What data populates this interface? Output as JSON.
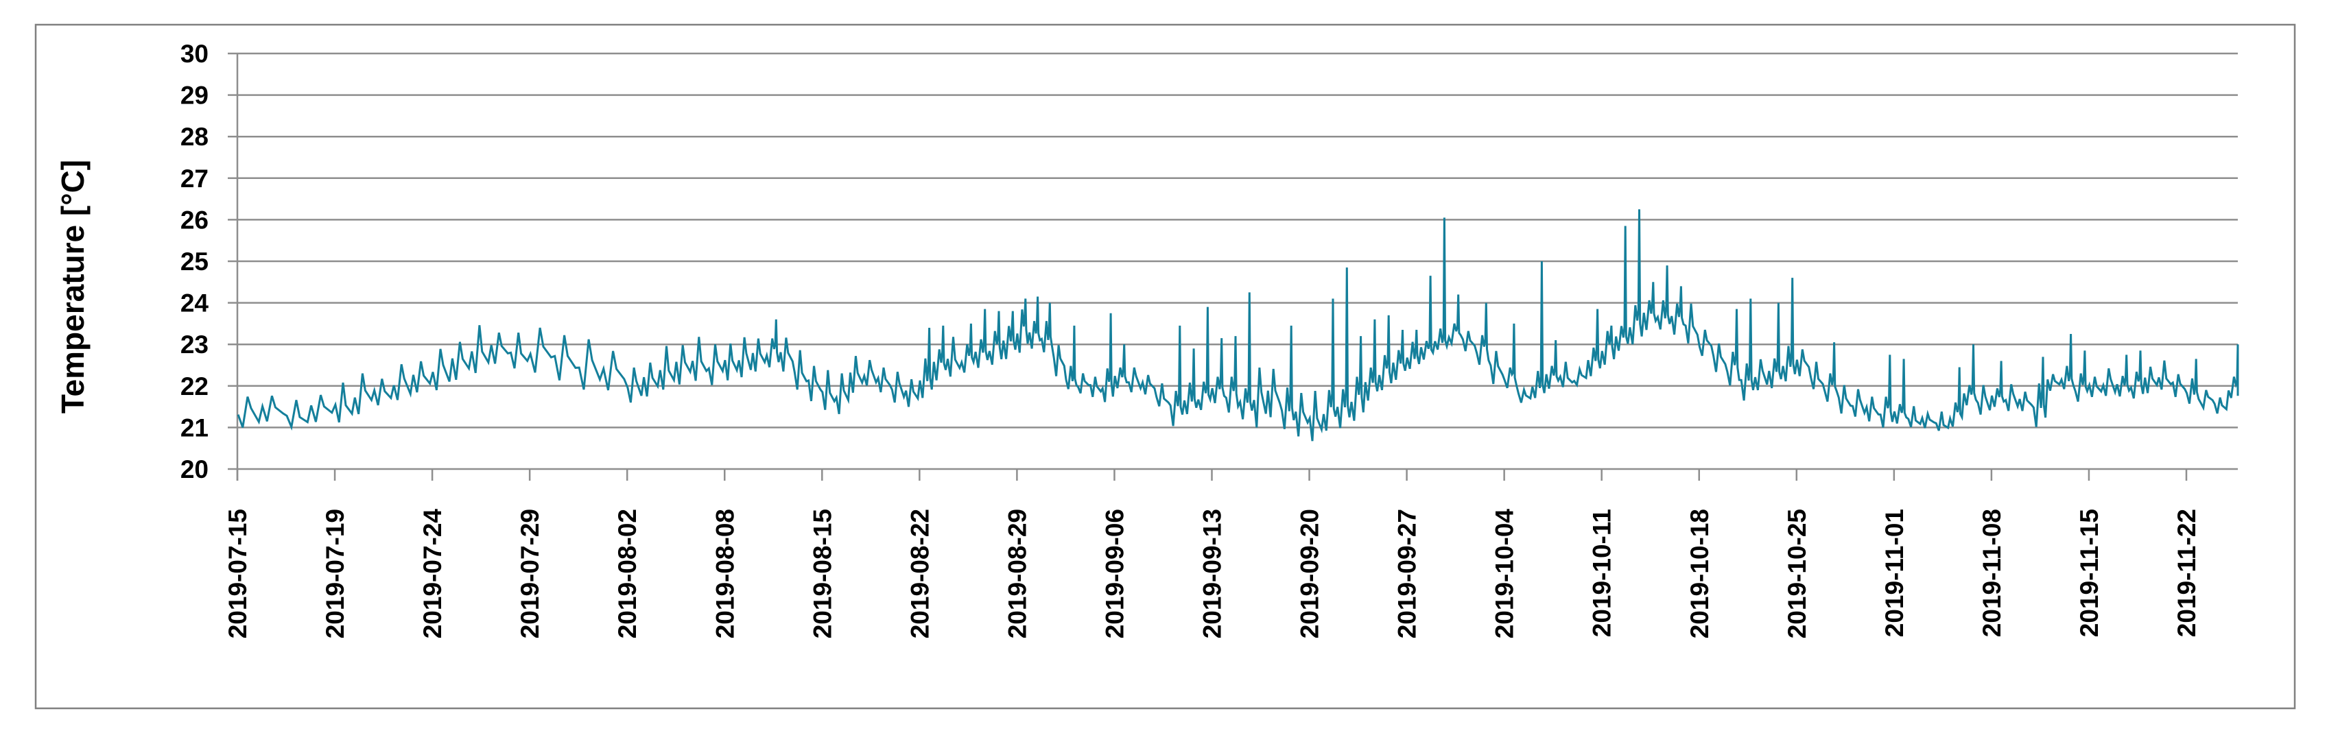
{
  "chart_data": {
    "type": "line",
    "title": "",
    "xlabel": "",
    "ylabel": "Temperature [°C]",
    "ylim": [
      20,
      30
    ],
    "y_ticks": [
      20,
      21,
      22,
      23,
      24,
      25,
      26,
      27,
      28,
      29,
      30
    ],
    "grid": "horizontal-gray-lines",
    "legend_position": "none",
    "line_color": "#147f9b",
    "grid_color": "#8e8e8e",
    "frame_color": "#808080",
    "text_color": "#000000",
    "x_tick_labels": [
      "2019-07-15",
      "2019-07-19",
      "2019-07-24",
      "2019-07-29",
      "2019-08-02",
      "2019-08-08",
      "2019-08-15",
      "2019-08-22",
      "2019-08-29",
      "2019-09-06",
      "2019-09-13",
      "2019-09-20",
      "2019-09-27",
      "2019-10-04",
      "2019-10-11",
      "2019-10-18",
      "2019-10-25",
      "2019-11-01",
      "2019-11-08",
      "2019-11-15",
      "2019-11-22"
    ],
    "daily": [
      {
        "d": "07-15",
        "lo": 21.0,
        "hi": 21.7
      },
      {
        "d": "07-16",
        "lo": 21.1,
        "hi": 21.8
      },
      {
        "d": "07-17",
        "lo": 21.0,
        "hi": 21.6
      },
      {
        "d": "07-18",
        "lo": 21.1,
        "hi": 21.8
      },
      {
        "d": "07-19",
        "lo": 21.1,
        "hi": 22.0
      },
      {
        "d": "07-20",
        "lo": 21.3,
        "hi": 22.3
      },
      {
        "d": "07-21",
        "lo": 21.5,
        "hi": 22.25
      },
      {
        "d": "07-22",
        "lo": 21.65,
        "hi": 22.5
      },
      {
        "d": "07-23",
        "lo": 21.8,
        "hi": 22.65
      },
      {
        "d": "07-24",
        "lo": 21.9,
        "hi": 22.85
      },
      {
        "d": "07-25",
        "lo": 22.1,
        "hi": 23.1
      },
      {
        "d": "07-26",
        "lo": 22.3,
        "hi": 23.4
      },
      {
        "d": "07-27",
        "lo": 22.5,
        "hi": 23.3
      },
      {
        "d": "07-28",
        "lo": 22.4,
        "hi": 23.2
      },
      {
        "d": "07-29",
        "lo": 22.3,
        "hi": 23.4
      },
      {
        "d": "07-30",
        "lo": 22.1,
        "hi": 23.3
      },
      {
        "d": "07-31",
        "lo": 21.9,
        "hi": 23.1
      },
      {
        "d": "08-01",
        "lo": 21.85,
        "hi": 22.9
      },
      {
        "d": "08-02",
        "lo": 21.6,
        "hi": 22.4
      },
      {
        "d": "08-03",
        "lo": 21.7,
        "hi": 22.6
      },
      {
        "d": "08-04",
        "lo": 21.9,
        "hi": 22.9
      },
      {
        "d": "08-05",
        "lo": 22.0,
        "hi": 23.0
      },
      {
        "d": "08-06",
        "lo": 22.1,
        "hi": 23.1
      },
      {
        "d": "08-07",
        "lo": 22.0,
        "hi": 23.0
      },
      {
        "d": "08-08",
        "lo": 22.1,
        "hi": 23.1
      },
      {
        "d": "08-09",
        "lo": 22.2,
        "hi": 23.15
      },
      {
        "d": "08-10",
        "lo": 22.3,
        "hi": 23.2
      },
      {
        "d": "08-11",
        "lo": 22.45,
        "hi": 23.1,
        "s": 23.6
      },
      {
        "d": "08-12",
        "lo": 22.3,
        "hi": 23.2
      },
      {
        "d": "08-13",
        "lo": 21.9,
        "hi": 22.8
      },
      {
        "d": "08-14",
        "lo": 21.6,
        "hi": 22.5
      },
      {
        "d": "08-15",
        "lo": 21.4,
        "hi": 22.3
      },
      {
        "d": "08-16",
        "lo": 21.3,
        "hi": 22.3
      },
      {
        "d": "08-17",
        "lo": 21.8,
        "hi": 22.8
      },
      {
        "d": "08-18",
        "lo": 22.0,
        "hi": 22.6
      },
      {
        "d": "08-19",
        "lo": 21.8,
        "hi": 22.5
      },
      {
        "d": "08-20",
        "lo": 21.6,
        "hi": 22.3
      },
      {
        "d": "08-21",
        "lo": 21.45,
        "hi": 22.2
      },
      {
        "d": "08-22",
        "lo": 21.7,
        "hi": 22.6,
        "s": 23.4
      },
      {
        "d": "08-23",
        "lo": 22.1,
        "hi": 22.9,
        "s": 23.45
      },
      {
        "d": "08-24",
        "lo": 22.2,
        "hi": 23.1
      },
      {
        "d": "08-25",
        "lo": 22.3,
        "hi": 23.0,
        "s": 23.5
      },
      {
        "d": "08-26",
        "lo": 22.4,
        "hi": 23.2,
        "s": 23.85
      },
      {
        "d": "08-27",
        "lo": 22.5,
        "hi": 23.3,
        "s": 23.8
      },
      {
        "d": "08-28",
        "lo": 22.6,
        "hi": 23.5,
        "s": 23.8
      },
      {
        "d": "08-29",
        "lo": 22.8,
        "hi": 23.8,
        "s": 24.1
      },
      {
        "d": "08-30",
        "lo": 22.85,
        "hi": 23.6,
        "s": 24.15
      },
      {
        "d": "08-31",
        "lo": 22.8,
        "hi": 23.5,
        "s": 24.0
      },
      {
        "d": "09-01",
        "lo": 22.2,
        "hi": 23.0
      },
      {
        "d": "09-02",
        "lo": 21.9,
        "hi": 22.4,
        "s": 23.45
      },
      {
        "d": "09-03",
        "lo": 21.8,
        "hi": 22.3
      },
      {
        "d": "09-04",
        "lo": 21.7,
        "hi": 22.3
      },
      {
        "d": "09-05",
        "lo": 21.6,
        "hi": 22.4,
        "s": 23.75
      },
      {
        "d": "09-06",
        "lo": 21.9,
        "hi": 22.5,
        "s": 23.0
      },
      {
        "d": "09-07",
        "lo": 21.85,
        "hi": 22.4
      },
      {
        "d": "09-08",
        "lo": 21.75,
        "hi": 22.3
      },
      {
        "d": "09-09",
        "lo": 21.5,
        "hi": 22.0
      },
      {
        "d": "09-10",
        "lo": 21.0,
        "hi": 21.9,
        "s": 23.45
      },
      {
        "d": "09-11",
        "lo": 21.3,
        "hi": 22.0,
        "s": 22.9
      },
      {
        "d": "09-12",
        "lo": 21.4,
        "hi": 22.1,
        "s": 23.9
      },
      {
        "d": "09-13",
        "lo": 21.55,
        "hi": 22.3,
        "s": 23.15
      },
      {
        "d": "09-14",
        "lo": 21.35,
        "hi": 22.2,
        "s": 23.2
      },
      {
        "d": "09-15",
        "lo": 21.15,
        "hi": 22.0,
        "s": 24.25
      },
      {
        "d": "09-16",
        "lo": 21.0,
        "hi": 22.4
      },
      {
        "d": "09-17",
        "lo": 21.2,
        "hi": 22.45
      },
      {
        "d": "09-18",
        "lo": 20.95,
        "hi": 21.9,
        "s": 23.45
      },
      {
        "d": "09-19",
        "lo": 20.75,
        "hi": 21.85
      },
      {
        "d": "09-20",
        "lo": 20.65,
        "hi": 21.8
      },
      {
        "d": "09-21",
        "lo": 20.9,
        "hi": 21.9,
        "s": 24.1
      },
      {
        "d": "09-22",
        "lo": 20.95,
        "hi": 22.0,
        "s": 24.85
      },
      {
        "d": "09-23",
        "lo": 21.15,
        "hi": 22.2,
        "s": 23.2
      },
      {
        "d": "09-24",
        "lo": 21.6,
        "hi": 22.5,
        "s": 23.6
      },
      {
        "d": "09-25",
        "lo": 21.9,
        "hi": 22.7,
        "s": 23.7
      },
      {
        "d": "09-26",
        "lo": 22.1,
        "hi": 22.9,
        "s": 23.35
      },
      {
        "d": "09-27",
        "lo": 22.4,
        "hi": 23.0,
        "s": 23.35
      },
      {
        "d": "09-28",
        "lo": 22.6,
        "hi": 23.1,
        "s": 24.65
      },
      {
        "d": "09-29",
        "lo": 22.85,
        "hi": 23.3,
        "s": 26.05
      },
      {
        "d": "09-30",
        "lo": 23.0,
        "hi": 23.5,
        "s": 24.2
      },
      {
        "d": "10-01",
        "lo": 22.8,
        "hi": 23.4
      },
      {
        "d": "10-02",
        "lo": 22.5,
        "hi": 23.2,
        "s": 24.0
      },
      {
        "d": "10-03",
        "lo": 22.0,
        "hi": 22.9
      },
      {
        "d": "10-04",
        "lo": 21.95,
        "hi": 22.4,
        "s": 23.5
      },
      {
        "d": "10-05",
        "lo": 21.55,
        "hi": 21.95
      },
      {
        "d": "10-06",
        "lo": 21.7,
        "hi": 22.3,
        "s": 25.0
      },
      {
        "d": "10-07",
        "lo": 21.9,
        "hi": 22.5,
        "s": 23.1
      },
      {
        "d": "10-08",
        "lo": 21.95,
        "hi": 22.5
      },
      {
        "d": "10-09",
        "lo": 22.0,
        "hi": 22.4
      },
      {
        "d": "10-10",
        "lo": 22.2,
        "hi": 23.0,
        "s": 23.85
      },
      {
        "d": "10-11",
        "lo": 22.5,
        "hi": 23.3,
        "s": 23.45
      },
      {
        "d": "10-12",
        "lo": 22.8,
        "hi": 23.5,
        "s": 25.85
      },
      {
        "d": "10-13",
        "lo": 23.0,
        "hi": 23.9,
        "s": 26.25
      },
      {
        "d": "10-14",
        "lo": 23.3,
        "hi": 24.1,
        "s": 24.5
      },
      {
        "d": "10-15",
        "lo": 23.35,
        "hi": 24.0,
        "s": 24.9
      },
      {
        "d": "10-16",
        "lo": 23.2,
        "hi": 24.0,
        "s": 24.4
      },
      {
        "d": "10-17",
        "lo": 23.0,
        "hi": 23.9
      },
      {
        "d": "10-18",
        "lo": 22.7,
        "hi": 23.35
      },
      {
        "d": "10-19",
        "lo": 22.3,
        "hi": 23.1
      },
      {
        "d": "10-20",
        "lo": 22.0,
        "hi": 22.8,
        "s": 23.85
      },
      {
        "d": "10-21",
        "lo": 21.6,
        "hi": 22.6,
        "s": 24.1
      },
      {
        "d": "10-22",
        "lo": 21.9,
        "hi": 22.6
      },
      {
        "d": "10-23",
        "lo": 21.9,
        "hi": 22.7,
        "s": 24.0
      },
      {
        "d": "10-24",
        "lo": 22.1,
        "hi": 22.9,
        "s": 24.6
      },
      {
        "d": "10-25",
        "lo": 22.2,
        "hi": 22.9
      },
      {
        "d": "10-26",
        "lo": 21.9,
        "hi": 22.5
      },
      {
        "d": "10-27",
        "lo": 21.6,
        "hi": 22.3,
        "s": 23.05
      },
      {
        "d": "10-28",
        "lo": 21.3,
        "hi": 22.1
      },
      {
        "d": "10-29",
        "lo": 21.25,
        "hi": 21.9
      },
      {
        "d": "10-30",
        "lo": 21.1,
        "hi": 21.8
      },
      {
        "d": "10-31",
        "lo": 21.0,
        "hi": 21.7,
        "s": 22.75
      },
      {
        "d": "11-01",
        "lo": 21.05,
        "hi": 21.6,
        "s": 22.65
      },
      {
        "d": "11-02",
        "lo": 21.0,
        "hi": 21.45
      },
      {
        "d": "11-03",
        "lo": 20.95,
        "hi": 21.35
      },
      {
        "d": "11-04",
        "lo": 20.9,
        "hi": 21.3
      },
      {
        "d": "11-05",
        "lo": 21.0,
        "hi": 21.6,
        "s": 22.45
      },
      {
        "d": "11-06",
        "lo": 21.5,
        "hi": 22.1,
        "s": 23.0
      },
      {
        "d": "11-07",
        "lo": 21.3,
        "hi": 22.0
      },
      {
        "d": "11-08",
        "lo": 21.45,
        "hi": 22.0,
        "s": 22.6
      },
      {
        "d": "11-09",
        "lo": 21.4,
        "hi": 22.0
      },
      {
        "d": "11-10",
        "lo": 21.35,
        "hi": 21.9
      },
      {
        "d": "11-11",
        "lo": 21.0,
        "hi": 22.0,
        "s": 22.7
      },
      {
        "d": "11-12",
        "lo": 21.85,
        "hi": 22.3
      },
      {
        "d": "11-13",
        "lo": 21.9,
        "hi": 22.4,
        "s": 23.25
      },
      {
        "d": "11-14",
        "lo": 21.6,
        "hi": 22.3,
        "s": 22.85
      },
      {
        "d": "11-15",
        "lo": 21.7,
        "hi": 22.3
      },
      {
        "d": "11-16",
        "lo": 21.75,
        "hi": 22.4
      },
      {
        "d": "11-17",
        "lo": 21.7,
        "hi": 22.3,
        "s": 22.75
      },
      {
        "d": "11-18",
        "lo": 21.7,
        "hi": 22.3,
        "s": 22.85
      },
      {
        "d": "11-19",
        "lo": 21.78,
        "hi": 22.5
      },
      {
        "d": "11-20",
        "lo": 21.9,
        "hi": 22.55
      },
      {
        "d": "11-21",
        "lo": 21.7,
        "hi": 22.3
      },
      {
        "d": "11-22",
        "lo": 21.55,
        "hi": 22.1,
        "s": 22.65
      },
      {
        "d": "11-23",
        "lo": 21.45,
        "hi": 21.9
      },
      {
        "d": "11-24",
        "lo": 21.3,
        "hi": 21.8
      },
      {
        "d": "11-25",
        "lo": 21.7,
        "hi": 22.2,
        "s": 23.0
      },
      {
        "d": "11-26",
        "lo": 21.9,
        "hi": 22.45
      }
    ]
  }
}
